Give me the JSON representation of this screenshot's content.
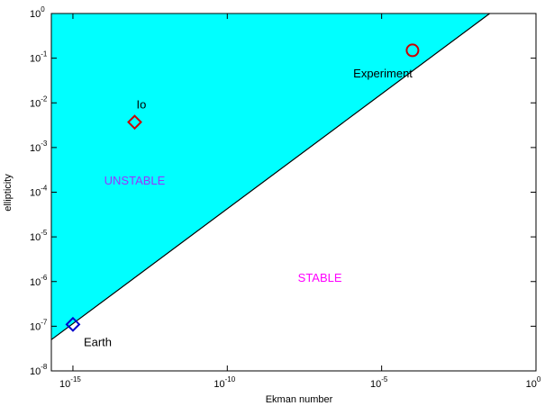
{
  "chart_data": {
    "type": "scatter",
    "title": "",
    "xlabel": "Ekman number",
    "ylabel": "ellipticity",
    "xscale": "log",
    "yscale": "log",
    "xlim": [
      2e-16,
      1
    ],
    "ylim": [
      1e-08,
      1
    ],
    "grid": false,
    "legend": "none",
    "x_ticks": [
      {
        "value": 1e-15,
        "base": "10",
        "exp": "-15"
      },
      {
        "value": 1e-10,
        "base": "10",
        "exp": "-10"
      },
      {
        "value": 1e-05,
        "base": "10",
        "exp": "-5"
      },
      {
        "value": 1,
        "base": "10",
        "exp": "0"
      }
    ],
    "y_ticks": [
      {
        "value": 1e-08,
        "base": "10",
        "exp": "-8"
      },
      {
        "value": 1e-07,
        "base": "10",
        "exp": "-7"
      },
      {
        "value": 1e-06,
        "base": "10",
        "exp": "-6"
      },
      {
        "value": 1e-05,
        "base": "10",
        "exp": "-5"
      },
      {
        "value": 0.0001,
        "base": "10",
        "exp": "-4"
      },
      {
        "value": 0.001,
        "base": "10",
        "exp": "-3"
      },
      {
        "value": 0.01,
        "base": "10",
        "exp": "-2"
      },
      {
        "value": 0.1,
        "base": "10",
        "exp": "-1"
      },
      {
        "value": 1,
        "base": "10",
        "exp": "0"
      }
    ],
    "boundary": {
      "x": [
        2e-16,
        0.0316
      ],
      "y": [
        5e-08,
        1
      ]
    },
    "region_color": "#00ffff",
    "points": [
      {
        "name": "Earth",
        "x": 1e-15,
        "y": 1.1e-07,
        "marker": "diamond",
        "color": "#0000cc",
        "label": "Earth"
      },
      {
        "name": "Io",
        "x": 1e-13,
        "y": 0.0037,
        "marker": "diamond",
        "color": "#cc0000",
        "label": "Io"
      },
      {
        "name": "Experiment",
        "x": 0.0001,
        "y": 0.15,
        "marker": "circle",
        "color": "#cc0000",
        "label": "Experiment"
      }
    ],
    "regions": [
      {
        "label": "UNSTABLE",
        "x": 1e-13,
        "y": 0.00015,
        "color": "#9933ff"
      },
      {
        "label": "STABLE",
        "x": 1e-07,
        "y": 1e-06,
        "color": "#ff00ff"
      }
    ]
  }
}
